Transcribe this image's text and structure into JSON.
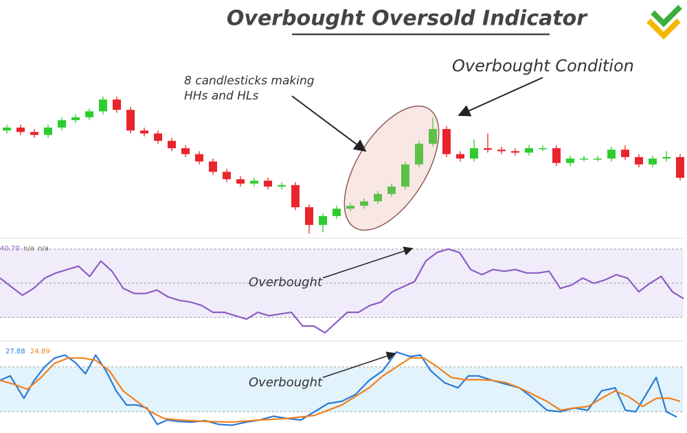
{
  "title": "Overbought Oversold Indicator",
  "chart_data": [
    {
      "type": "candlestick",
      "annotations": [
        "8 candlesticks making",
        "HHs and HLs",
        "Overbought Condition"
      ],
      "open": [
        72,
        74,
        71,
        69,
        74,
        79,
        81,
        85,
        93,
        86,
        72,
        70,
        65,
        60,
        56,
        51,
        44,
        39,
        36,
        38,
        34,
        35,
        20,
        8,
        14,
        19,
        21,
        24,
        29,
        34,
        49,
        63,
        73,
        56,
        53,
        60,
        59,
        58,
        57,
        60,
        60,
        50,
        53,
        53,
        53,
        59,
        54,
        49,
        53,
        54
      ],
      "high": [
        76,
        76,
        73,
        76,
        81,
        83,
        87,
        95,
        95,
        88,
        74,
        72,
        67,
        62,
        58,
        53,
        46,
        41,
        40,
        40,
        37,
        37,
        22,
        16,
        21,
        23,
        26,
        31,
        36,
        51,
        65,
        81,
        75,
        58,
        66,
        70,
        61,
        60,
        62,
        62,
        62,
        55,
        55,
        55,
        61,
        62,
        56,
        55,
        58,
        56
      ],
      "low": [
        70,
        69,
        67,
        67,
        72,
        77,
        79,
        83,
        84,
        70,
        68,
        63,
        58,
        54,
        49,
        42,
        37,
        34,
        34,
        32,
        32,
        18,
        2,
        3,
        12,
        17,
        19,
        22,
        27,
        32,
        47,
        61,
        54,
        51,
        51,
        57,
        56,
        55,
        55,
        58,
        48,
        48,
        51,
        51,
        51,
        52,
        47,
        47,
        51,
        38
      ],
      "close": [
        74,
        71,
        69,
        74,
        79,
        81,
        85,
        93,
        86,
        72,
        70,
        65,
        60,
        56,
        51,
        44,
        39,
        36,
        38,
        34,
        35,
        20,
        8,
        14,
        19,
        21,
        24,
        29,
        34,
        49,
        63,
        73,
        56,
        53,
        60,
        59,
        58,
        57,
        60,
        60,
        50,
        53,
        53,
        53,
        59,
        54,
        49,
        53,
        54,
        40
      ],
      "up_color": "#2ecc2e",
      "down_color": "#e8242c",
      "ylim": [
        0,
        100
      ]
    },
    {
      "type": "line",
      "readouts": [
        "40.70",
        "n/a",
        "n/a"
      ],
      "annotation": "Overbought",
      "series": [
        {
          "color": "#8a5cc2",
          "values": [
            53,
            48,
            43,
            47,
            53,
            56,
            58,
            60,
            54,
            63,
            57,
            47,
            44,
            44,
            46,
            42,
            40,
            39,
            37,
            33,
            33,
            31,
            29,
            33,
            31,
            32,
            33,
            25,
            25,
            21,
            27,
            33,
            33,
            37,
            39,
            45,
            48,
            51,
            63,
            68,
            70,
            68,
            58,
            55,
            58,
            57,
            58,
            56,
            56,
            57,
            47,
            49,
            53,
            50,
            52,
            55,
            53,
            45,
            50,
            54,
            45,
            41
          ]
        }
      ],
      "bands": [
        30,
        50,
        70
      ],
      "band_color": "#f1ecfa",
      "ylim": [
        17,
        76
      ]
    },
    {
      "type": "line",
      "readouts": [
        "27.88",
        "24.89"
      ],
      "annotation": "Overbought",
      "series": [
        {
          "color": "#2979d9",
          "x": [
            0,
            1.5,
            3.5,
            5,
            6.5,
            8,
            9.5,
            11,
            12.5,
            14,
            15.5,
            17,
            18.5,
            20,
            21.5,
            23,
            24.5,
            26,
            28,
            30,
            32,
            34,
            36,
            38,
            40,
            42,
            44,
            46,
            48,
            50,
            52,
            54,
            56,
            58,
            60,
            61.5,
            63,
            65,
            67,
            68.5,
            70,
            72,
            74,
            76,
            78,
            80,
            82,
            84,
            86,
            88,
            90,
            91.5,
            93,
            94.5,
            96,
            97.5,
            99
          ],
          "values": [
            62,
            68,
            38,
            62,
            80,
            92,
            96,
            86,
            71,
            96,
            75,
            48,
            29,
            29,
            25,
            3,
            9,
            7,
            6,
            8,
            3,
            2,
            6,
            9,
            14,
            11,
            9,
            20,
            31,
            34,
            43,
            62,
            75,
            100,
            94,
            96,
            75,
            59,
            52,
            68,
            68,
            62,
            57,
            52,
            38,
            22,
            20,
            25,
            22,
            48,
            52,
            22,
            20,
            43,
            66,
            20,
            13
          ]
        },
        {
          "color": "#f07f1e",
          "x": [
            0,
            2,
            4,
            6,
            8,
            10,
            12,
            14,
            16,
            18,
            20,
            22,
            24,
            26,
            30,
            34,
            38,
            42,
            46,
            50,
            54,
            56,
            58,
            60,
            62,
            64,
            66,
            68,
            70,
            72,
            74,
            76,
            78,
            80,
            82,
            84,
            86,
            88,
            90,
            92,
            94,
            96,
            98,
            99.5
          ],
          "values": [
            62,
            57,
            50,
            66,
            85,
            92,
            92,
            89,
            75,
            48,
            34,
            20,
            11,
            9,
            7,
            6,
            9,
            11,
            15,
            29,
            52,
            68,
            80,
            92,
            92,
            80,
            66,
            63,
            63,
            62,
            59,
            52,
            43,
            34,
            22,
            25,
            27,
            38,
            48,
            40,
            27,
            38,
            38,
            34
          ]
        }
      ],
      "bands": [
        20,
        80
      ],
      "band_color": "#e2f3fb",
      "xlim": [
        0,
        100
      ],
      "ylim": [
        -3,
        112
      ]
    }
  ]
}
